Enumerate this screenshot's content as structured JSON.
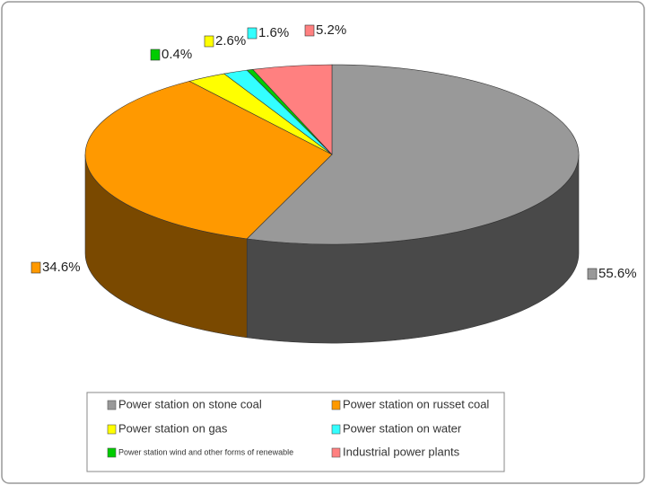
{
  "chart_data": {
    "type": "pie",
    "categories": [
      "Power station on stone coal",
      "Power station on russet coal",
      "Power station on gas",
      "Power station on water",
      "Power station wind and other forms of renewable",
      "Industrial power plants"
    ],
    "values": [
      55.6,
      34.6,
      2.6,
      1.6,
      0.4,
      5.2
    ],
    "value_labels": [
      "55.6%",
      "34.6%",
      "2.6%",
      "1.6%",
      "0.4%",
      "5.2%"
    ],
    "colors": [
      "#999999",
      "#ff9900",
      "#ffff00",
      "#33ffff",
      "#00cc00",
      "#ff8080"
    ]
  }
}
